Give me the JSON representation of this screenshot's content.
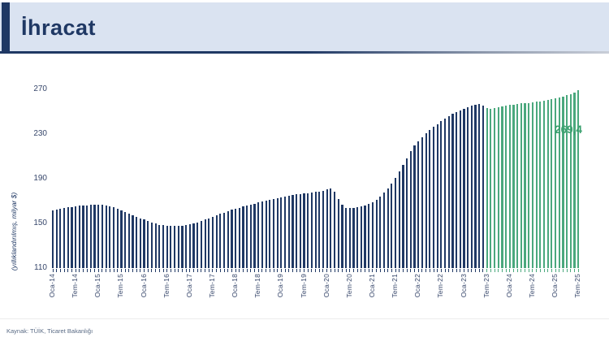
{
  "app": {
    "title": "İhracat"
  },
  "chart_data": {
    "type": "bar",
    "title": "İhracat",
    "subtitle": "",
    "ylabel": "(yıllıklandırılmış, milyar $)",
    "xlabel": "",
    "unit": "milyar $ (yıllıklandırılmış)",
    "ylim": [
      110,
      270
    ],
    "yticks": [
      110,
      150,
      190,
      230,
      270
    ],
    "grid": false,
    "legend_position": "none",
    "frequency": "monthly",
    "x_start": "Oca-14",
    "x_end": "Tem-25",
    "x_tick_every": 6,
    "x_tick_labels": [
      "Oca-14",
      "Tem-14",
      "Oca-15",
      "Tem-15",
      "Oca-16",
      "Tem-16",
      "Oca-17",
      "Tem-17",
      "Oca-18",
      "Tem-18",
      "Oca-19",
      "Tem-19",
      "Oca-20",
      "Tem-20",
      "Oca-21",
      "Tem-21",
      "Oca-22",
      "Tem-22",
      "Oca-23",
      "Tem-23",
      "Oca-24",
      "Tem-24",
      "Oca-25",
      "Tem-25"
    ],
    "values": [
      161.5,
      162.3,
      163.0,
      163.7,
      164.3,
      164.8,
      165.3,
      165.7,
      166.0,
      166.3,
      166.5,
      166.6,
      166.6,
      166.4,
      166.0,
      165.3,
      164.4,
      163.3,
      162.0,
      160.5,
      158.9,
      157.2,
      155.6,
      154.5,
      153.5,
      152.2,
      150.9,
      149.8,
      148.9,
      148.2,
      147.8,
      147.5,
      147.5,
      147.6,
      147.9,
      148.4,
      149.1,
      150.0,
      151.0,
      152.1,
      153.3,
      154.6,
      155.9,
      157.2,
      158.5,
      159.8,
      161.0,
      162.1,
      163.1,
      164.1,
      165.0,
      165.9,
      166.8,
      167.7,
      168.6,
      169.5,
      170.4,
      171.2,
      172.0,
      172.8,
      173.5,
      174.2,
      174.8,
      175.4,
      175.9,
      176.4,
      176.8,
      177.2,
      177.6,
      178.1,
      178.7,
      179.4,
      180.2,
      181.0,
      178.5,
      172.0,
      166.5,
      164.0,
      163.5,
      163.8,
      164.3,
      165.0,
      166.0,
      167.2,
      168.8,
      171.0,
      174.0,
      177.5,
      181.5,
      186.0,
      191.0,
      196.5,
      202.5,
      208.5,
      214.5,
      219.5,
      223.5,
      227.0,
      230.5,
      233.5,
      236.5,
      239.0,
      241.5,
      244.0,
      246.0,
      248.0,
      249.5,
      251.0,
      252.5,
      254.0,
      255.5,
      256.5,
      257.0,
      255.5,
      253.0,
      252.5,
      253.0,
      253.8,
      254.6,
      255.4,
      256.0,
      256.5,
      257.0,
      257.4,
      257.7,
      258.0,
      258.4,
      258.9,
      259.4,
      260.0,
      260.7,
      261.4,
      262.1,
      262.9,
      263.7,
      264.6,
      265.6,
      267.2,
      269.4
    ],
    "highlight_start_index": 114,
    "bar_color": "#1f3864",
    "highlight_color": "#4aa87d",
    "last_value_label": "269,4",
    "last_value_label_color": "#3aa06e"
  },
  "footer": {
    "source": "Kaynak: TÜİK, Ticaret Bakanlığı"
  }
}
